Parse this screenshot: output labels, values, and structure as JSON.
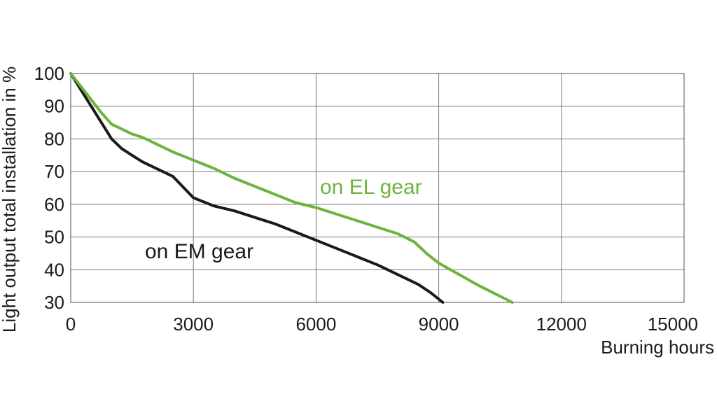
{
  "chart_data": {
    "type": "line",
    "xlabel": "Burning hours",
    "ylabel": "Light output total installation in %",
    "xlim": [
      0,
      15000
    ],
    "ylim": [
      30,
      100
    ],
    "x_ticks": [
      0,
      3000,
      6000,
      9000,
      12000,
      15000
    ],
    "y_ticks": [
      30,
      40,
      50,
      60,
      70,
      80,
      90,
      100
    ],
    "grid": true,
    "series": [
      {
        "name": "on EM gear",
        "color": "#1a1a1a",
        "points": [
          [
            0,
            100
          ],
          [
            250,
            95
          ],
          [
            500,
            90
          ],
          [
            750,
            85
          ],
          [
            1000,
            80
          ],
          [
            1250,
            77
          ],
          [
            1500,
            75
          ],
          [
            1750,
            73
          ],
          [
            2000,
            71.5
          ],
          [
            2500,
            68.5
          ],
          [
            3000,
            62
          ],
          [
            3500,
            59.5
          ],
          [
            4000,
            58
          ],
          [
            5000,
            54
          ],
          [
            6000,
            49
          ],
          [
            7000,
            44
          ],
          [
            7500,
            41.5
          ],
          [
            8000,
            38.5
          ],
          [
            8500,
            35.5
          ],
          [
            8800,
            33
          ],
          [
            9100,
            30
          ]
        ]
      },
      {
        "name": "on EL gear",
        "color": "#6db33f",
        "points": [
          [
            0,
            100
          ],
          [
            250,
            96
          ],
          [
            500,
            92
          ],
          [
            750,
            88
          ],
          [
            1000,
            84.5
          ],
          [
            1250,
            83
          ],
          [
            1500,
            81.5
          ],
          [
            1750,
            80.5
          ],
          [
            2000,
            79
          ],
          [
            2500,
            76
          ],
          [
            3000,
            73.5
          ],
          [
            3500,
            71
          ],
          [
            4000,
            68
          ],
          [
            4500,
            65.5
          ],
          [
            5000,
            63
          ],
          [
            5500,
            60.5
          ],
          [
            6000,
            59
          ],
          [
            6500,
            57
          ],
          [
            7000,
            55
          ],
          [
            7500,
            53
          ],
          [
            8000,
            51
          ],
          [
            8400,
            48.5
          ],
          [
            8700,
            45
          ],
          [
            9000,
            42
          ],
          [
            10000,
            35
          ],
          [
            10800,
            30
          ]
        ]
      }
    ]
  }
}
